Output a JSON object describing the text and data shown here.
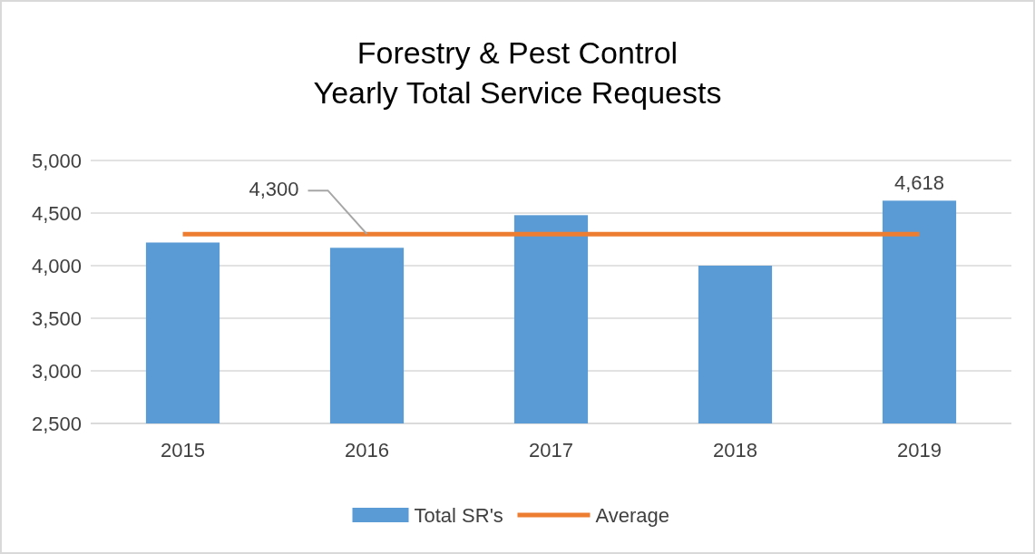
{
  "chart_data": {
    "type": "bar",
    "title": "Forestry & Pest Control\nYearly Total Service Requests",
    "categories": [
      "2015",
      "2016",
      "2017",
      "2018",
      "2019"
    ],
    "series": [
      {
        "name": "Total SR's",
        "color": "#5b9bd5",
        "values": [
          4220,
          4170,
          4480,
          4000,
          4618
        ],
        "value_labels": [
          null,
          null,
          null,
          null,
          "4,618"
        ]
      },
      {
        "name": "Average",
        "type": "line",
        "color": "#ed7d31",
        "values": [
          4300,
          4300,
          4300,
          4300,
          4300
        ]
      }
    ],
    "ylim": [
      2500,
      5000
    ],
    "yticks": [
      {
        "value": 2500,
        "label": "2,500"
      },
      {
        "value": 3000,
        "label": "3,000"
      },
      {
        "value": 3500,
        "label": "3,500"
      },
      {
        "value": 4000,
        "label": "4,000"
      },
      {
        "value": 4500,
        "label": "4,500"
      },
      {
        "value": 5000,
        "label": "5,000"
      }
    ],
    "grid": "y",
    "legend": "bottom",
    "marker": "none",
    "annotations": [
      {
        "text": "4,300",
        "x": "2016",
        "y": 4300
      }
    ]
  }
}
